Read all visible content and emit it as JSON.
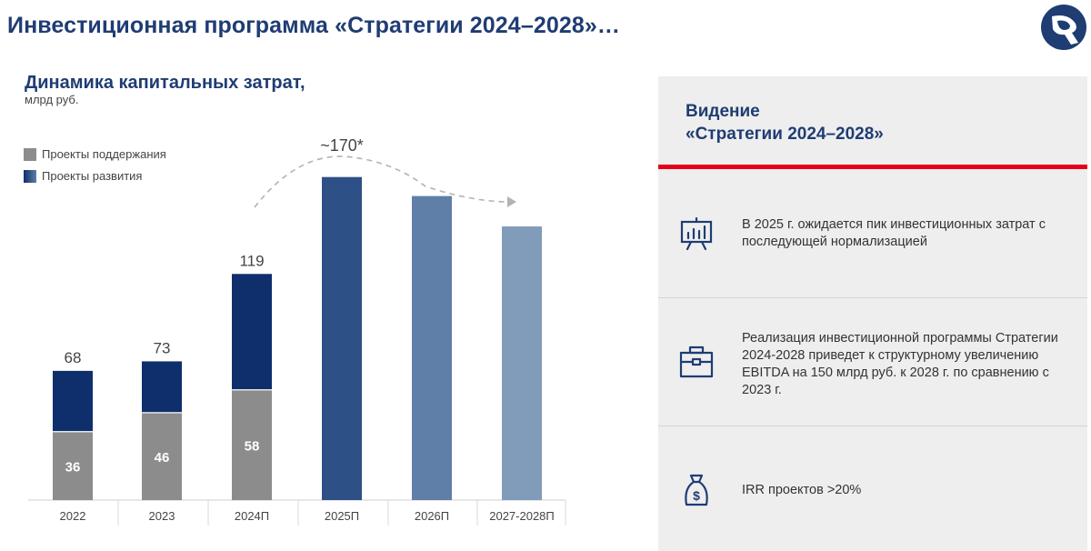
{
  "header": {
    "title": "Инвестиционная программа «Стратегии 2024–2028»…"
  },
  "brand": {
    "logo_icon": "company-logo-icon",
    "color_primary": "#1f3c73"
  },
  "chart_data": {
    "type": "bar",
    "title": "Динамика капитальных затрат,",
    "subtitle": "млрд руб.",
    "categories": [
      "2022",
      "2023",
      "2024П",
      "2025П",
      "2026П",
      "2027-2028П"
    ],
    "legend": [
      "Проекты поддержания",
      "Проекты развития"
    ],
    "legend_colors": [
      "#8c8c8c",
      "#0e2f6b"
    ],
    "series": [
      {
        "name": "Проекты поддержания",
        "values": [
          36,
          46,
          58,
          null,
          null,
          null
        ]
      },
      {
        "name": "Проекты развития",
        "values": [
          32,
          27,
          61,
          null,
          null,
          null
        ]
      }
    ],
    "totals": [
      68,
      73,
      119,
      170,
      160,
      144
    ],
    "total_labels": [
      "68",
      "73",
      "119",
      "",
      "",
      ""
    ],
    "segment_labels": [
      "36",
      "46",
      "58"
    ],
    "projection_colors": [
      "#2d5087",
      "#5f7fa8",
      "#819bbb"
    ],
    "peak_label": "~170*",
    "trend_arrow": true,
    "ylim": [
      0,
      180
    ]
  },
  "panel": {
    "title_line1": "Видение",
    "title_line2": "«Стратегии 2024–2028»",
    "accent_color": "#e4001b",
    "items": [
      {
        "icon": "presentation-chart-icon",
        "text": "В 2025 г. ожидается пик инвестиционных затрат с последующей нормализацией"
      },
      {
        "icon": "briefcase-icon",
        "text": "Реализация инвестиционной программы Стратегии 2024-2028 приведет к структурному увеличению EBITDA на 150 млрд руб. к 2028 г. по сравнению с 2023 г."
      },
      {
        "icon": "money-bag-icon",
        "text": "IRR проектов >20%"
      }
    ]
  }
}
